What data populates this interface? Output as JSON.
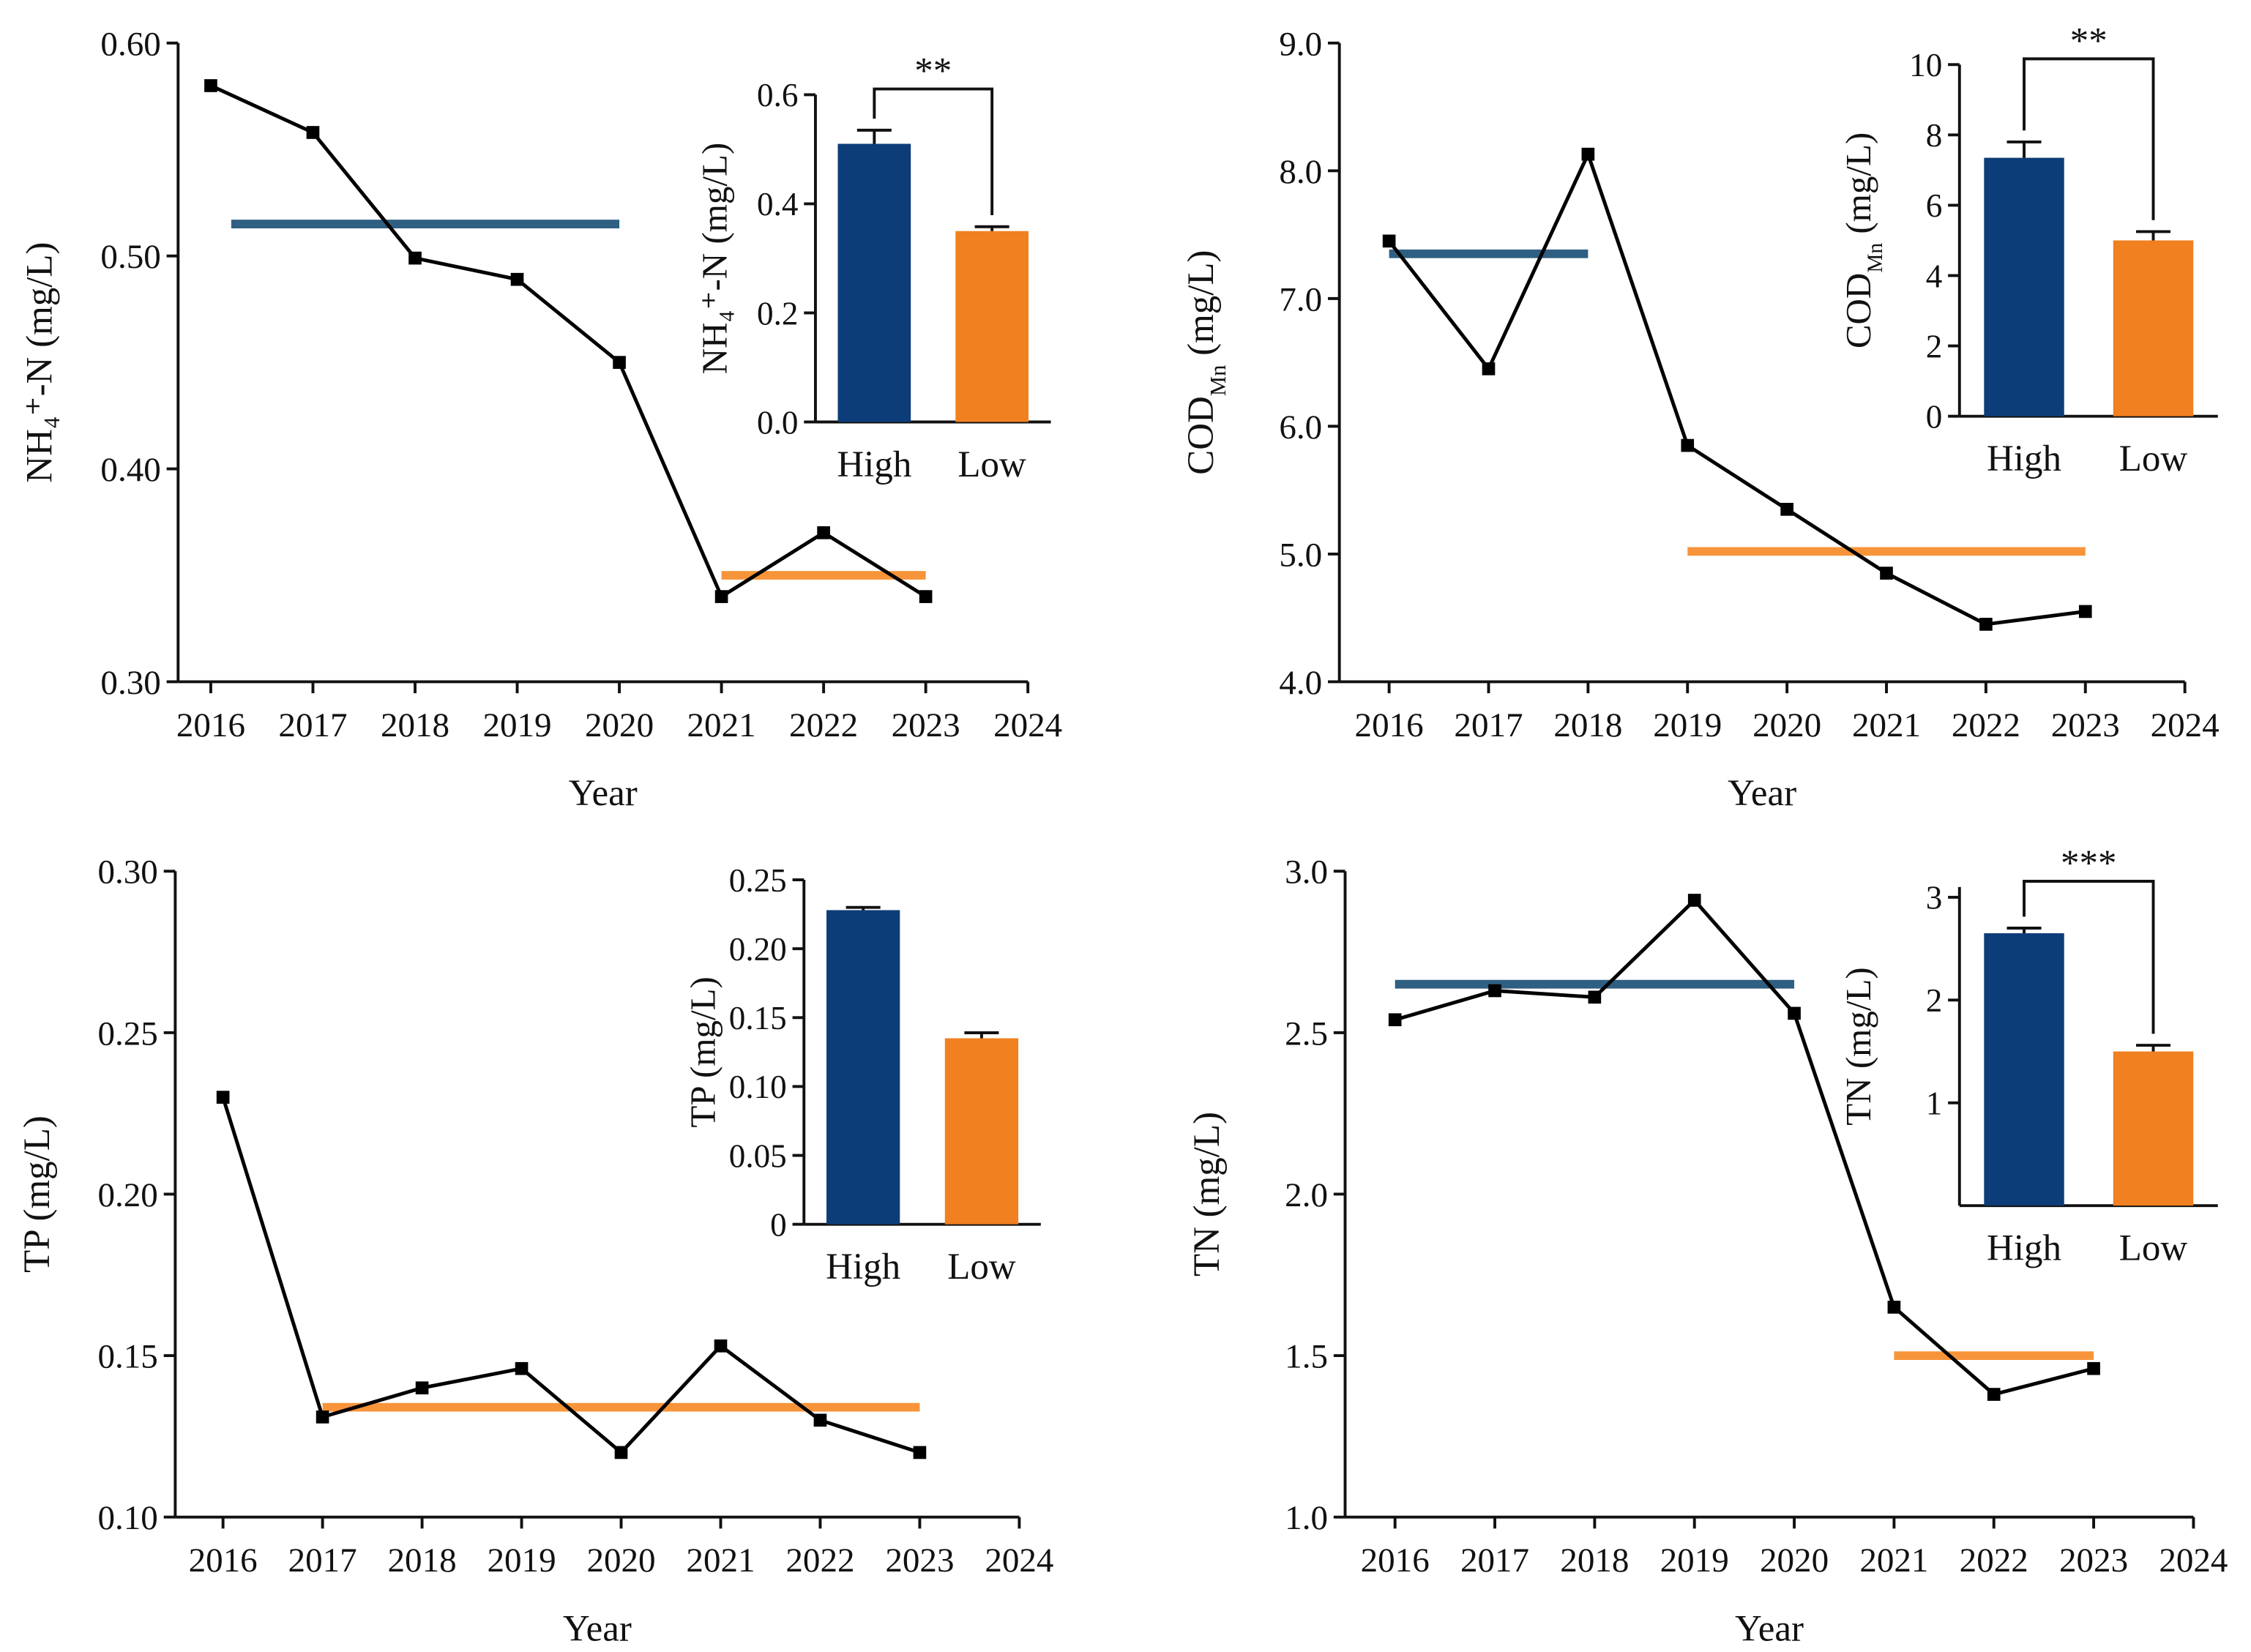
{
  "chart_data": [
    {
      "type": "line",
      "xlabel": "Year",
      "ylabel": [
        "NH₄⁺-N (mg/L)"
      ],
      "x": [
        2016,
        2017,
        2018,
        2019,
        2020,
        2021,
        2022,
        2023
      ],
      "series": [
        {
          "color": "#000000",
          "values": [
            0.58,
            0.558,
            0.499,
            0.489,
            0.45,
            0.34,
            0.37,
            0.34
          ]
        }
      ],
      "xlim": [
        2015.68,
        2024
      ],
      "xticks": [
        2016,
        2017,
        2018,
        2019,
        2020,
        2021,
        2022,
        2023,
        2024
      ],
      "ylim": [
        0.3,
        0.6
      ],
      "yticks": [
        {
          "value": 0.3,
          "label": "0.30"
        },
        {
          "value": 0.4,
          "label": "0.40"
        },
        {
          "value": 0.5,
          "label": "0.50"
        },
        {
          "value": 0.6,
          "label": "0.60"
        }
      ],
      "reference_lines": [
        {
          "color": "#2f5f82",
          "x": [
            2016.2,
            2020
          ],
          "value": 0.515
        },
        {
          "color": "#f7943a",
          "x": [
            2021,
            2023
          ],
          "value": 0.35
        }
      ]
    },
    {
      "type": "bar",
      "ylabel": [
        "NH₄⁺-N (mg/L)"
      ],
      "categories": [
        "High",
        "Low"
      ],
      "values": [
        0.51,
        0.35
      ],
      "errors": [
        0.025,
        0.008
      ],
      "colors": [
        "#0d3d78",
        "#f08020"
      ],
      "ylim": [
        0,
        0.6
      ],
      "yticks": [
        {
          "value": 0,
          "label": "0.0"
        },
        {
          "value": 0.2,
          "label": "0.2"
        },
        {
          "value": 0.4,
          "label": "0.4"
        },
        {
          "value": 0.6,
          "label": "0.6"
        }
      ],
      "significance": "**"
    },
    {
      "type": "line",
      "xlabel": "Year",
      "ylabel": [
        "COD",
        "Mn",
        " (mg/L)"
      ],
      "x": [
        2016,
        2017,
        2018,
        2019,
        2020,
        2021,
        2022,
        2023
      ],
      "series": [
        {
          "color": "#000000",
          "values": [
            7.45,
            6.45,
            8.13,
            5.85,
            5.35,
            4.85,
            4.45,
            4.55
          ]
        }
      ],
      "xlim": [
        2015.5,
        2024
      ],
      "xticks": [
        2016,
        2017,
        2018,
        2019,
        2020,
        2021,
        2022,
        2023,
        2024
      ],
      "ylim": [
        4,
        9
      ],
      "yticks": [
        {
          "value": 4,
          "label": "4.0"
        },
        {
          "value": 5,
          "label": "5.0"
        },
        {
          "value": 6,
          "label": "6.0"
        },
        {
          "value": 7,
          "label": "7.0"
        },
        {
          "value": 8,
          "label": "8.0"
        },
        {
          "value": 9,
          "label": "9.0"
        }
      ],
      "reference_lines": [
        {
          "color": "#2f5f82",
          "x": [
            2016,
            2018
          ],
          "value": 7.35
        },
        {
          "color": "#f7943a",
          "x": [
            2019,
            2023
          ],
          "value": 5.02
        }
      ]
    },
    {
      "type": "bar",
      "ylabel": [
        "COD",
        "Mn",
        " (mg/L)"
      ],
      "categories": [
        "High",
        "Low"
      ],
      "values": [
        7.35,
        5.0
      ],
      "errors": [
        0.45,
        0.25
      ],
      "colors": [
        "#0d3d78",
        "#f08020"
      ],
      "ylim": [
        0,
        10
      ],
      "yticks": [
        0,
        2,
        4,
        6,
        8,
        10
      ],
      "significance": "**"
    },
    {
      "type": "line",
      "xlabel": "Year",
      "ylabel": [
        "TP (mg/L)"
      ],
      "x": [
        2016,
        2017,
        2018,
        2019,
        2020,
        2021,
        2022,
        2023
      ],
      "series": [
        {
          "color": "#000000",
          "values": [
            0.23,
            0.131,
            0.14,
            0.146,
            0.12,
            0.153,
            0.13,
            0.12
          ]
        }
      ],
      "xlim": [
        2015.52,
        2024
      ],
      "xticks": [
        2016,
        2017,
        2018,
        2019,
        2020,
        2021,
        2022,
        2023,
        2024
      ],
      "ylim": [
        0.1,
        0.3
      ],
      "yticks": [
        {
          "value": 0.1,
          "label": "0.10"
        },
        0.15,
        {
          "value": 0.2,
          "label": "0.20"
        },
        0.25,
        {
          "value": 0.3,
          "label": "0.30"
        }
      ],
      "reference_lines": [
        {
          "color": "#f7943a",
          "x": [
            2017,
            2023
          ],
          "value": 0.134
        }
      ]
    },
    {
      "type": "bar",
      "ylabel": [
        "TP (mg/L)"
      ],
      "categories": [
        "High",
        "Low"
      ],
      "values": [
        0.228,
        0.135
      ],
      "errors": [
        0.002,
        0.004
      ],
      "colors": [
        "#0d3d78",
        "#f08020"
      ],
      "ylim": [
        0,
        0.25
      ],
      "yticks": [
        0,
        0.05,
        {
          "value": 0.1,
          "label": "0.10"
        },
        0.15,
        {
          "value": 0.2,
          "label": "0.20"
        },
        0.25
      ]
    },
    {
      "type": "line",
      "xlabel": "Year",
      "ylabel": [
        "TN (mg/L)"
      ],
      "x": [
        2016,
        2017,
        2018,
        2019,
        2020,
        2021,
        2022,
        2023
      ],
      "series": [
        {
          "color": "#000000",
          "values": [
            2.54,
            2.63,
            2.61,
            2.91,
            2.56,
            1.65,
            1.38,
            1.46
          ]
        }
      ],
      "xlim": [
        2015.5,
        2024
      ],
      "xticks": [
        2016,
        2017,
        2018,
        2019,
        2020,
        2021,
        2022,
        2023,
        2024
      ],
      "ylim": [
        1,
        3
      ],
      "yticks": [
        {
          "value": 1,
          "label": "1.0"
        },
        1.5,
        {
          "value": 2,
          "label": "2.0"
        },
        2.5,
        {
          "value": 3,
          "label": "3.0"
        }
      ],
      "reference_lines": [
        {
          "color": "#2f5f82",
          "x": [
            2016,
            2020
          ],
          "value": 2.65
        },
        {
          "color": "#f7943a",
          "x": [
            2021,
            2023
          ],
          "value": 1.5
        }
      ]
    },
    {
      "type": "bar",
      "ylabel": [
        "TN (mg/L)"
      ],
      "categories": [
        "High",
        "Low"
      ],
      "values": [
        2.65,
        1.5
      ],
      "errors": [
        0.05,
        0.06
      ],
      "colors": [
        "#0d3d78",
        "#f08020"
      ],
      "ylim": [
        0,
        3.1
      ],
      "yticks": [
        1,
        2,
        3
      ],
      "significance": "***"
    }
  ]
}
